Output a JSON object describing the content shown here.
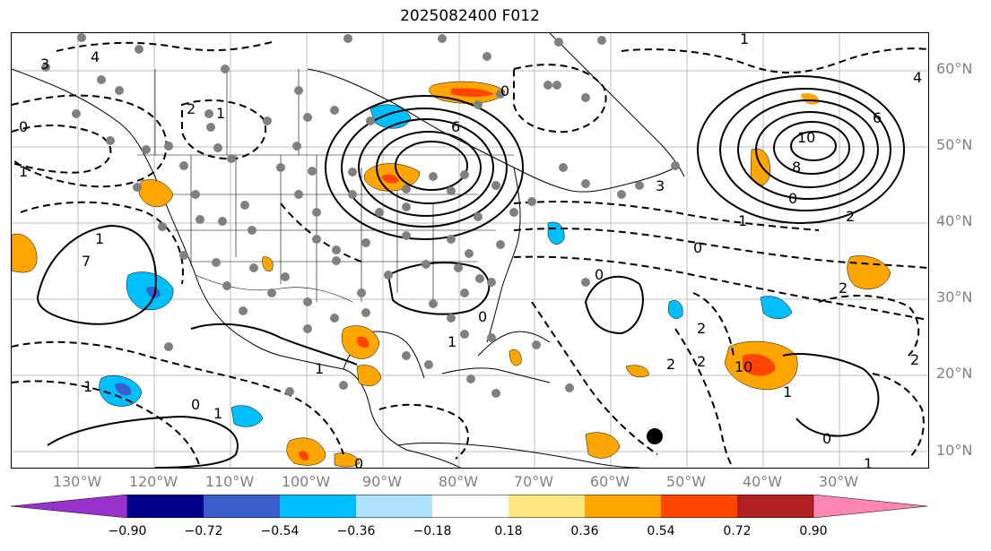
{
  "title": "2025082400 F012",
  "lat_labels": [
    "60°N",
    "50°N",
    "40°N",
    "30°N",
    "20°N",
    "10°N"
  ],
  "lon_labels": [
    "130°W",
    "120°W",
    "110°W",
    "100°W",
    "90°W",
    "80°W",
    "70°W",
    "60°W",
    "50°W",
    "40°W",
    "30°W"
  ],
  "colorbar": {
    "ticks": [
      "−0.90",
      "−0.72",
      "−0.54",
      "−0.36",
      "−0.18",
      "0.18",
      "0.36",
      "0.54",
      "0.72",
      "0.90"
    ],
    "colors": [
      "#9932cc",
      "#00008b",
      "#3a5fcd",
      "#00bfff",
      "#b0e2ff",
      "#ffffff",
      "#ffe680",
      "#ffa500",
      "#ff4500",
      "#b22222",
      "#ff85b3"
    ]
  },
  "contour_labels": [
    "3",
    "4",
    "2",
    "0",
    "1",
    "1",
    "6",
    "0",
    "10",
    "8",
    "0",
    "1",
    "3",
    "1",
    "0",
    "2",
    "2",
    "1",
    "7",
    "0",
    "1",
    "2",
    "0",
    "1",
    "2",
    "0",
    "1",
    "0",
    "1",
    "2",
    "10",
    "1",
    "0",
    "1",
    "4",
    "6",
    "2"
  ]
}
